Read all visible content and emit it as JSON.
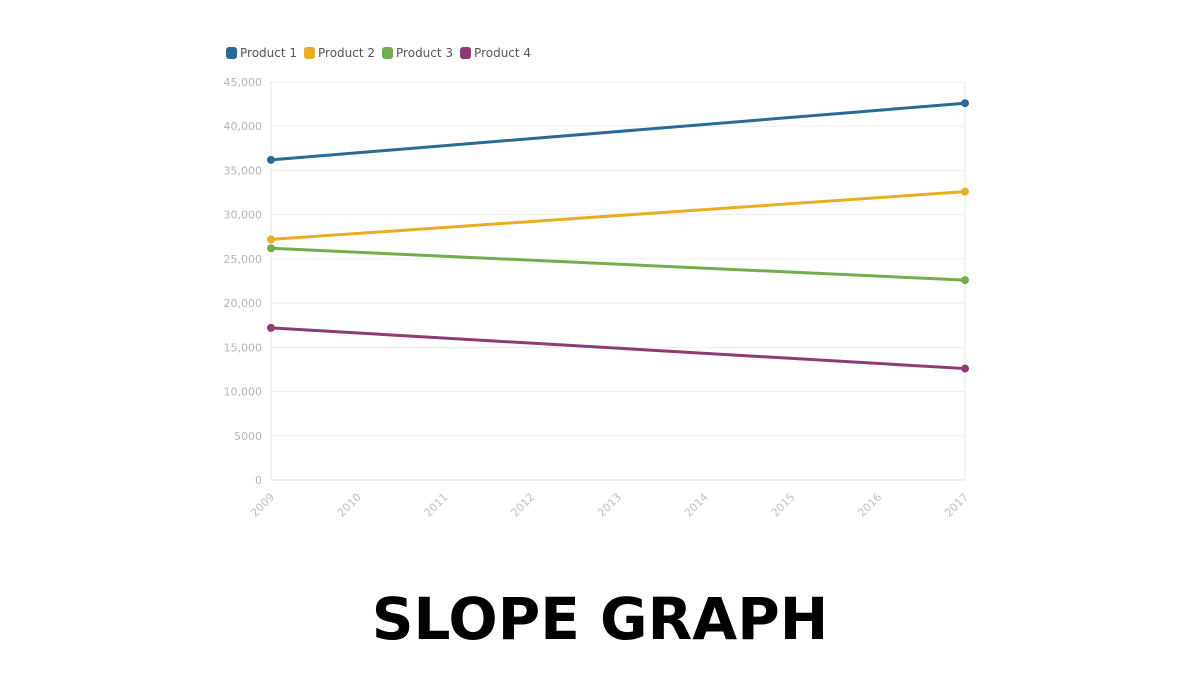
{
  "caption": "SLOPE GRAPH",
  "chart_data": {
    "type": "line",
    "title": "",
    "xlabel": "",
    "ylabel": "",
    "x": [
      "2009",
      "2010",
      "2011",
      "2012",
      "2013",
      "2014",
      "2015",
      "2016",
      "2017"
    ],
    "ylim": [
      0,
      45000
    ],
    "yticks": [
      0,
      5000,
      10000,
      15000,
      20000,
      25000,
      30000,
      35000,
      40000,
      45000
    ],
    "ytick_labels": [
      "0",
      "5000",
      "10,000",
      "15,000",
      "20,000",
      "25,000",
      "30,000",
      "35,000",
      "40,000",
      "45,000"
    ],
    "grid": true,
    "legend_position": "top-left",
    "series": [
      {
        "name": "Product 1",
        "color": "#2a6b96",
        "points": [
          {
            "x": "2009",
            "y": 36200
          },
          {
            "x": "2017",
            "y": 42600
          }
        ]
      },
      {
        "name": "Product 2",
        "color": "#e8ad24",
        "points": [
          {
            "x": "2009",
            "y": 27200
          },
          {
            "x": "2017",
            "y": 32600
          }
        ]
      },
      {
        "name": "Product 3",
        "color": "#73ad4d",
        "points": [
          {
            "x": "2009",
            "y": 26200
          },
          {
            "x": "2017",
            "y": 22600
          }
        ]
      },
      {
        "name": "Product 4",
        "color": "#8e3a75",
        "points": [
          {
            "x": "2009",
            "y": 17200
          },
          {
            "x": "2017",
            "y": 12600
          }
        ]
      }
    ]
  }
}
